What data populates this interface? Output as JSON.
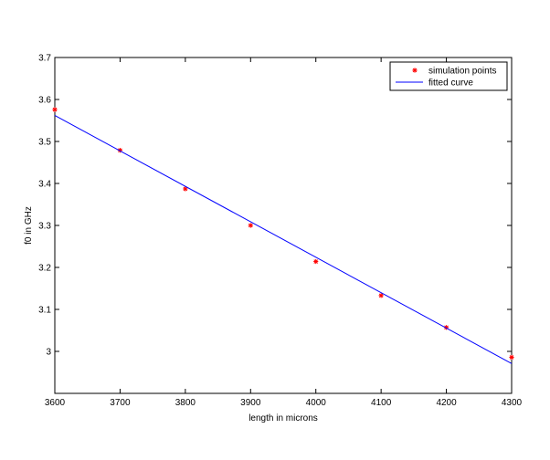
{
  "chart_data": {
    "type": "scatter",
    "title": "",
    "xlabel": "length in microns",
    "ylabel": "f0 in GHz",
    "xlim": [
      3600,
      4300
    ],
    "ylim": [
      2.9,
      3.7
    ],
    "xticks": [
      3600,
      3700,
      3800,
      3900,
      4000,
      4100,
      4200,
      4300
    ],
    "yticks": [
      3,
      3.1,
      3.2,
      3.3,
      3.4,
      3.5,
      3.6,
      3.7
    ],
    "xtick_labels": [
      "3600",
      "3700",
      "3800",
      "3900",
      "4000",
      "4100",
      "4200",
      "4300"
    ],
    "ytick_labels": [
      "3",
      "3.1",
      "3.2",
      "3.3",
      "3.4",
      "3.5",
      "3.6",
      "3.7"
    ],
    "grid": false,
    "legend_position": "top-right",
    "series": [
      {
        "name": "simulation points",
        "kind": "scatter",
        "marker": "*",
        "color": "#ff0000",
        "x": [
          3600,
          3700,
          3800,
          3900,
          4000,
          4100,
          4200,
          4300
        ],
        "y": [
          3.576,
          3.479,
          3.387,
          3.3,
          3.214,
          3.133,
          3.057,
          2.986
        ]
      },
      {
        "name": "fitted curve",
        "kind": "line",
        "color": "#0000ff",
        "x": [
          3600,
          4300
        ],
        "y": [
          3.562,
          2.971
        ]
      }
    ]
  }
}
